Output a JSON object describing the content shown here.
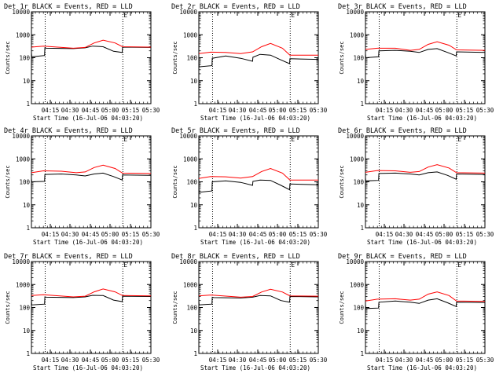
{
  "chart_data": [
    {
      "type": "line",
      "title": "Det 1r BLACK = Events, RED = LLD",
      "ylabel": "Counts/sec",
      "xlabel": "Start Time (16-Jul-06 04:03:20)",
      "x_tick_labels": [
        "04:15",
        "04:30",
        "04:45",
        "05:00",
        "05:15",
        "05:30"
      ],
      "y_tick_labels": [
        "1",
        "10",
        "100",
        "1000",
        "10000"
      ],
      "ylim": [
        1,
        10000
      ],
      "xlim_minutes": [
        0,
        40
      ],
      "vlines_minutes": [
        4.6,
        30.6
      ],
      "marker_label": "E",
      "series": [
        {
          "name": "Events",
          "color": "#000000",
          "x": [
            0,
            0.1,
            4.4,
            4.5,
            5.0,
            14,
            18,
            20.5,
            24,
            27.5,
            30.4,
            30.5,
            40
          ],
          "y": [
            170,
            110,
            125,
            270,
            260,
            250,
            270,
            320,
            300,
            190,
            170,
            290,
            280
          ]
        },
        {
          "name": "LLD",
          "color": "#ff0000",
          "x": [
            0,
            4,
            14,
            18,
            21,
            24,
            28,
            30.5,
            40
          ],
          "y": [
            290,
            320,
            260,
            280,
            440,
            580,
            440,
            300,
            290
          ]
        }
      ]
    },
    {
      "type": "line",
      "title": "Det 2r BLACK = Events, RED = LLD",
      "ylabel": "Counts/sec",
      "xlabel": "Start Time (16-Jul-06 04:03:20)",
      "x_tick_labels": [
        "04:15",
        "04:30",
        "04:45",
        "05:00",
        "05:15",
        "05:30"
      ],
      "y_tick_labels": [
        "1",
        "10",
        "100",
        "1000",
        "10000"
      ],
      "ylim": [
        1,
        10000
      ],
      "xlim_minutes": [
        0,
        40
      ],
      "vlines_minutes": [
        4.6,
        30.6
      ],
      "marker_label": "E",
      "series": [
        {
          "name": "Events",
          "color": "#000000",
          "x": [
            0,
            0.1,
            4.4,
            4.5,
            9,
            14,
            18,
            18.1,
            20.5,
            24,
            27.5,
            30.4,
            30.5,
            40
          ],
          "y": [
            70,
            40,
            45,
            95,
            120,
            95,
            70,
            105,
            140,
            130,
            80,
            55,
            90,
            85
          ]
        },
        {
          "name": "LLD",
          "color": "#ff0000",
          "x": [
            0,
            4,
            9,
            14,
            18,
            21,
            24,
            28,
            30.5,
            40
          ],
          "y": [
            150,
            175,
            170,
            150,
            180,
            300,
            420,
            260,
            130,
            130
          ]
        }
      ]
    },
    {
      "type": "line",
      "title": "Det 3r BLACK = Events, RED = LLD",
      "ylabel": "Counts/sec",
      "xlabel": "Start Time (16-Jul-06 04:03:20)",
      "x_tick_labels": [
        "04:15",
        "04:30",
        "04:45",
        "05:00",
        "05:15",
        "05:30"
      ],
      "y_tick_labels": [
        "1",
        "10",
        "100",
        "1000",
        "10000"
      ],
      "ylim": [
        1,
        10000
      ],
      "xlim_minutes": [
        0,
        40
      ],
      "vlines_minutes": [
        4.6,
        30.6
      ],
      "marker_label": "E",
      "series": [
        {
          "name": "Events",
          "color": "#000000",
          "x": [
            0,
            0.1,
            4.4,
            4.5,
            10,
            15,
            18,
            21,
            24,
            27.5,
            30.4,
            30.5,
            40
          ],
          "y": [
            150,
            100,
            110,
            200,
            210,
            190,
            170,
            230,
            250,
            170,
            120,
            180,
            170
          ]
        },
        {
          "name": "LLD",
          "color": "#ff0000",
          "x": [
            0,
            4,
            10,
            15,
            18,
            21,
            24,
            28,
            30.5,
            40
          ],
          "y": [
            230,
            260,
            260,
            210,
            230,
            380,
            500,
            350,
            220,
            210
          ]
        }
      ]
    },
    {
      "type": "line",
      "title": "Det 4r BLACK = Events, RED = LLD",
      "ylabel": "Counts/sec",
      "xlabel": "Start Time (16-Jul-06 04:03:20)",
      "x_tick_labels": [
        "04:15",
        "04:30",
        "04:45",
        "05:00",
        "05:15",
        "05:30"
      ],
      "y_tick_labels": [
        "1",
        "10",
        "100",
        "1000",
        "10000"
      ],
      "ylim": [
        1,
        10000
      ],
      "xlim_minutes": [
        0,
        40
      ],
      "vlines_minutes": [
        4.6,
        30.6
      ],
      "marker_label": "E",
      "series": [
        {
          "name": "Events",
          "color": "#000000",
          "x": [
            0,
            0.1,
            4.4,
            4.5,
            10,
            15,
            18,
            21,
            24,
            27.5,
            30.4,
            30.5,
            40
          ],
          "y": [
            140,
            100,
            105,
            210,
            220,
            200,
            180,
            220,
            240,
            170,
            120,
            200,
            190
          ]
        },
        {
          "name": "LLD",
          "color": "#ff0000",
          "x": [
            0,
            4,
            10,
            15,
            18,
            21,
            24,
            28,
            30.5,
            40
          ],
          "y": [
            250,
            300,
            290,
            250,
            270,
            420,
            530,
            380,
            240,
            230
          ]
        }
      ]
    },
    {
      "type": "line",
      "title": "Det 5r BLACK = Events, RED = LLD",
      "ylabel": "Counts/sec",
      "xlabel": "Start Time (16-Jul-06 04:03:20)",
      "x_tick_labels": [
        "04:15",
        "04:30",
        "04:45",
        "05:00",
        "05:15",
        "05:30"
      ],
      "y_tick_labels": [
        "1",
        "10",
        "100",
        "1000",
        "10000"
      ],
      "ylim": [
        1,
        10000
      ],
      "xlim_minutes": [
        0,
        40
      ],
      "vlines_minutes": [
        4.6,
        30.6
      ],
      "marker_label": "E",
      "series": [
        {
          "name": "Events",
          "color": "#000000",
          "x": [
            0,
            0.1,
            4.4,
            4.5,
            9,
            14,
            18,
            18.1,
            20.5,
            24,
            27.5,
            30.4,
            30.5,
            40
          ],
          "y": [
            55,
            35,
            40,
            100,
            110,
            95,
            70,
            105,
            120,
            115,
            70,
            45,
            80,
            75
          ]
        },
        {
          "name": "LLD",
          "color": "#ff0000",
          "x": [
            0,
            4,
            9,
            14,
            18,
            21,
            24,
            28,
            30.5,
            40
          ],
          "y": [
            140,
            170,
            165,
            145,
            170,
            280,
            380,
            240,
            120,
            120
          ]
        }
      ]
    },
    {
      "type": "line",
      "title": "Det 6r BLACK = Events, RED = LLD",
      "ylabel": "Counts/sec",
      "xlabel": "Start Time (16-Jul-06 04:03:20)",
      "x_tick_labels": [
        "04:15",
        "04:30",
        "04:45",
        "05:00",
        "05:15",
        "05:30"
      ],
      "y_tick_labels": [
        "1",
        "10",
        "100",
        "1000",
        "10000"
      ],
      "ylim": [
        1,
        10000
      ],
      "xlim_minutes": [
        0,
        40
      ],
      "vlines_minutes": [
        4.6,
        30.6
      ],
      "marker_label": "E",
      "series": [
        {
          "name": "Events",
          "color": "#000000",
          "x": [
            0,
            0.1,
            4.4,
            4.5,
            10,
            15,
            18,
            21,
            24,
            27.5,
            30.4,
            30.5,
            40
          ],
          "y": [
            150,
            110,
            115,
            230,
            240,
            220,
            200,
            250,
            270,
            190,
            130,
            220,
            210
          ]
        },
        {
          "name": "LLD",
          "color": "#ff0000",
          "x": [
            0,
            4,
            10,
            15,
            18,
            21,
            24,
            28,
            30.5,
            40
          ],
          "y": [
            260,
            310,
            300,
            260,
            280,
            440,
            560,
            400,
            250,
            240
          ]
        }
      ]
    },
    {
      "type": "line",
      "title": "Det 7r BLACK = Events, RED = LLD",
      "ylabel": "Counts/sec",
      "xlabel": "Start Time (16-Jul-06 04:03:20)",
      "x_tick_labels": [
        "04:15",
        "04:30",
        "04:45",
        "05:00",
        "05:15",
        "05:30"
      ],
      "y_tick_labels": [
        "1",
        "10",
        "100",
        "1000",
        "10000"
      ],
      "ylim": [
        1,
        10000
      ],
      "xlim_minutes": [
        0,
        40
      ],
      "vlines_minutes": [
        4.6,
        30.6
      ],
      "marker_label": "E",
      "series": [
        {
          "name": "Events",
          "color": "#000000",
          "x": [
            0,
            0.1,
            4.4,
            4.5,
            5.0,
            14,
            18,
            20.5,
            24,
            27.5,
            30.4,
            30.5,
            40
          ],
          "y": [
            200,
            130,
            140,
            290,
            280,
            270,
            290,
            340,
            330,
            210,
            180,
            310,
            300
          ]
        },
        {
          "name": "LLD",
          "color": "#ff0000",
          "x": [
            0,
            4,
            14,
            18,
            21,
            24,
            28,
            30.5,
            40
          ],
          "y": [
            330,
            360,
            290,
            310,
            480,
            640,
            480,
            330,
            320
          ]
        }
      ]
    },
    {
      "type": "line",
      "title": "Det 8r BLACK = Events, RED = LLD",
      "ylabel": "Counts/sec",
      "xlabel": "Start Time (16-Jul-06 04:03:20)",
      "x_tick_labels": [
        "04:15",
        "04:30",
        "04:45",
        "05:00",
        "05:15",
        "05:30"
      ],
      "y_tick_labels": [
        "1",
        "10",
        "100",
        "1000",
        "10000"
      ],
      "ylim": [
        1,
        10000
      ],
      "xlim_minutes": [
        0,
        40
      ],
      "vlines_minutes": [
        4.6,
        30.6
      ],
      "marker_label": "E",
      "series": [
        {
          "name": "Events",
          "color": "#000000",
          "x": [
            0,
            0.1,
            4.4,
            4.5,
            5.0,
            14,
            18,
            20.5,
            24,
            27.5,
            30.4,
            30.5,
            40
          ],
          "y": [
            190,
            130,
            140,
            280,
            270,
            260,
            280,
            330,
            320,
            200,
            170,
            300,
            290
          ]
        },
        {
          "name": "LLD",
          "color": "#ff0000",
          "x": [
            0,
            4,
            14,
            18,
            21,
            24,
            28,
            30.5,
            40
          ],
          "y": [
            320,
            350,
            280,
            300,
            470,
            620,
            470,
            320,
            310
          ]
        }
      ]
    },
    {
      "type": "line",
      "title": "Det 9r BLACK = Events, RED = LLD",
      "ylabel": "Counts/sec",
      "xlabel": "Start Time (16-Jul-06 04:03:20)",
      "x_tick_labels": [
        "04:15",
        "04:30",
        "04:45",
        "05:00",
        "05:15",
        "05:30"
      ],
      "y_tick_labels": [
        "1",
        "10",
        "100",
        "1000",
        "10000"
      ],
      "ylim": [
        1,
        10000
      ],
      "xlim_minutes": [
        0,
        40
      ],
      "vlines_minutes": [
        4.6,
        30.6
      ],
      "marker_label": "E",
      "series": [
        {
          "name": "Events",
          "color": "#000000",
          "x": [
            0,
            0.1,
            4.4,
            4.5,
            10,
            15,
            18,
            21,
            24,
            27.5,
            30.4,
            30.5,
            40
          ],
          "y": [
            130,
            90,
            95,
            170,
            190,
            170,
            150,
            210,
            240,
            160,
            110,
            170,
            165
          ]
        },
        {
          "name": "LLD",
          "color": "#ff0000",
          "x": [
            0,
            4,
            10,
            15,
            18,
            21,
            24,
            28,
            30.5,
            40
          ],
          "y": [
            190,
            230,
            240,
            210,
            230,
            380,
            480,
            330,
            190,
            185
          ]
        }
      ]
    }
  ]
}
